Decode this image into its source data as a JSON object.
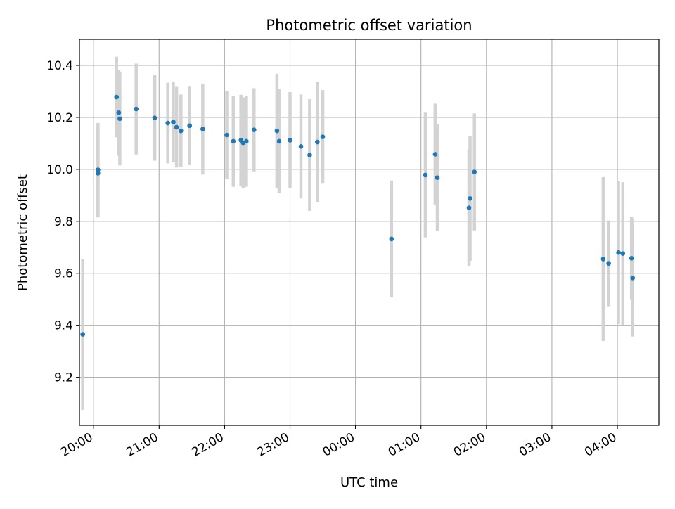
{
  "chart_data": {
    "type": "scatter",
    "title": "Photometric offset variation",
    "xlabel": "UTC time",
    "ylabel": "Photometric offset",
    "x_is_time": true,
    "xlim": [
      "19:47",
      "04:38"
    ],
    "ylim": [
      9.015,
      10.5
    ],
    "xticks": [
      "20:00",
      "21:00",
      "22:00",
      "23:00",
      "00:00",
      "01:00",
      "02:00",
      "03:00",
      "04:00"
    ],
    "yticks": [
      9.2,
      9.4,
      9.6,
      9.8,
      10.0,
      10.2,
      10.4
    ],
    "grid": true,
    "legend": "none",
    "colors": {
      "point": "#1f77b4",
      "errorbar": "#d3d3d3",
      "grid": "#b0b0b0"
    },
    "points": [
      {
        "x": "19:50",
        "y": 9.365,
        "err": 0.29
      },
      {
        "x": "20:04",
        "y": 9.985,
        "err": 0.17
      },
      {
        "x": "20:04",
        "y": 9.998,
        "err": 0.18
      },
      {
        "x": "20:21",
        "y": 10.278,
        "err": 0.155
      },
      {
        "x": "20:23",
        "y": 10.218,
        "err": 0.165
      },
      {
        "x": "20:24",
        "y": 10.195,
        "err": 0.18
      },
      {
        "x": "20:39",
        "y": 10.232,
        "err": 0.175
      },
      {
        "x": "20:56",
        "y": 10.198,
        "err": 0.165
      },
      {
        "x": "21:08",
        "y": 10.178,
        "err": 0.155
      },
      {
        "x": "21:13",
        "y": 10.182,
        "err": 0.155
      },
      {
        "x": "21:16",
        "y": 10.162,
        "err": 0.155
      },
      {
        "x": "21:20",
        "y": 10.148,
        "err": 0.14
      },
      {
        "x": "21:28",
        "y": 10.168,
        "err": 0.15
      },
      {
        "x": "21:40",
        "y": 10.155,
        "err": 0.175
      },
      {
        "x": "22:02",
        "y": 10.132,
        "err": 0.17
      },
      {
        "x": "22:08",
        "y": 10.108,
        "err": 0.175
      },
      {
        "x": "22:15",
        "y": 10.112,
        "err": 0.175
      },
      {
        "x": "22:17",
        "y": 10.102,
        "err": 0.175
      },
      {
        "x": "22:20",
        "y": 10.108,
        "err": 0.175
      },
      {
        "x": "22:27",
        "y": 10.152,
        "err": 0.16
      },
      {
        "x": "22:48",
        "y": 10.148,
        "err": 0.22
      },
      {
        "x": "22:50",
        "y": 10.108,
        "err": 0.2
      },
      {
        "x": "23:00",
        "y": 10.112,
        "err": 0.185
      },
      {
        "x": "23:10",
        "y": 10.088,
        "err": 0.2
      },
      {
        "x": "23:18",
        "y": 10.055,
        "err": 0.215
      },
      {
        "x": "23:25",
        "y": 10.105,
        "err": 0.23
      },
      {
        "x": "23:30",
        "y": 10.125,
        "err": 0.18
      },
      {
        "x": "00:33",
        "y": 9.732,
        "err": 0.225
      },
      {
        "x": "01:04",
        "y": 9.978,
        "err": 0.24
      },
      {
        "x": "01:13",
        "y": 10.058,
        "err": 0.195
      },
      {
        "x": "01:15",
        "y": 9.968,
        "err": 0.205
      },
      {
        "x": "01:44",
        "y": 9.852,
        "err": 0.225
      },
      {
        "x": "01:45",
        "y": 9.888,
        "err": 0.24
      },
      {
        "x": "01:49",
        "y": 9.99,
        "err": 0.225
      },
      {
        "x": "03:47",
        "y": 9.655,
        "err": 0.315
      },
      {
        "x": "03:52",
        "y": 9.638,
        "err": 0.165
      },
      {
        "x": "04:01",
        "y": 9.68,
        "err": 0.275
      },
      {
        "x": "04:05",
        "y": 9.676,
        "err": 0.275
      },
      {
        "x": "04:13",
        "y": 9.658,
        "err": 0.16
      },
      {
        "x": "04:14",
        "y": 9.582,
        "err": 0.225
      }
    ]
  }
}
